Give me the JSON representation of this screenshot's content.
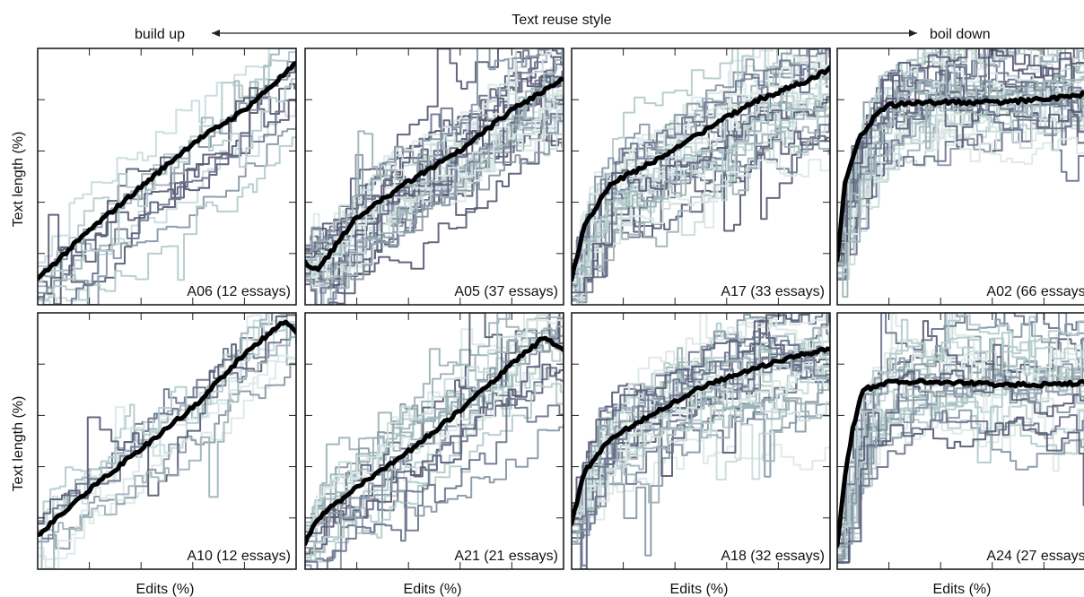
{
  "header": {
    "title": "Text reuse style",
    "left_label": "build up",
    "right_label": "boil down"
  },
  "axis_labels": {
    "ylabel": "Text length (%)",
    "xlabel": "Edits (%)"
  },
  "colors": {
    "mean_line": "#000000",
    "essay_palette": [
      "#5c5f78",
      "#6f7890",
      "#8a9aa8",
      "#9fb5b8",
      "#b5cccc",
      "#cadcdc",
      "#dde9e8"
    ]
  },
  "chart_data": [
    {
      "type": "line",
      "label": "A06 (12 essays)",
      "essays": 12,
      "style": "build-up",
      "mean": {
        "x": [
          0,
          20,
          40,
          60,
          80,
          100
        ],
        "y": [
          10,
          29,
          46,
          63,
          76,
          94
        ]
      }
    },
    {
      "type": "line",
      "label": "A05 (37 essays)",
      "essays": 37,
      "style": "build-up",
      "mean": {
        "x": [
          0,
          5,
          20,
          40,
          60,
          80,
          100
        ],
        "y": [
          16,
          14,
          34,
          48,
          60,
          76,
          88
        ]
      }
    },
    {
      "type": "line",
      "label": "A17 (33 essays)",
      "essays": 33,
      "style": "intermediate",
      "mean": {
        "x": [
          0,
          5,
          15,
          30,
          50,
          70,
          90,
          100
        ],
        "y": [
          10,
          31,
          47,
          55,
          67,
          79,
          87,
          92
        ]
      }
    },
    {
      "type": "line",
      "label": "A02 (66 essays)",
      "essays": 66,
      "style": "boil-down",
      "mean": {
        "x": [
          0,
          3,
          8,
          15,
          20,
          40,
          60,
          80,
          100
        ],
        "y": [
          18,
          47,
          64,
          74,
          78,
          79,
          79,
          80,
          83
        ]
      }
    },
    {
      "type": "line",
      "label": "A10 (12 essays)",
      "essays": 12,
      "style": "build-up",
      "mean": {
        "x": [
          0,
          20,
          40,
          60,
          80,
          96,
          100
        ],
        "y": [
          13,
          31,
          47,
          63,
          84,
          97,
          93
        ]
      }
    },
    {
      "type": "line",
      "label": "A21 (21 essays)",
      "essays": 21,
      "style": "build-up",
      "mean": {
        "x": [
          0,
          5,
          20,
          40,
          60,
          80,
          92,
          100
        ],
        "y": [
          10,
          20,
          32,
          46,
          62,
          80,
          90,
          86
        ]
      }
    },
    {
      "type": "line",
      "label": "A18 (32 essays)",
      "essays": 32,
      "style": "intermediate",
      "mean": {
        "x": [
          0,
          5,
          15,
          30,
          50,
          70,
          90,
          100
        ],
        "y": [
          18,
          38,
          51,
          60,
          71,
          78,
          84,
          86
        ]
      }
    },
    {
      "type": "line",
      "label": "A24 (27 essays)",
      "essays": 27,
      "style": "boil-down",
      "mean": {
        "x": [
          0,
          3,
          6,
          10,
          20,
          40,
          60,
          80,
          100
        ],
        "y": [
          10,
          36,
          55,
          70,
          73,
          73,
          72,
          72,
          73
        ]
      }
    }
  ]
}
